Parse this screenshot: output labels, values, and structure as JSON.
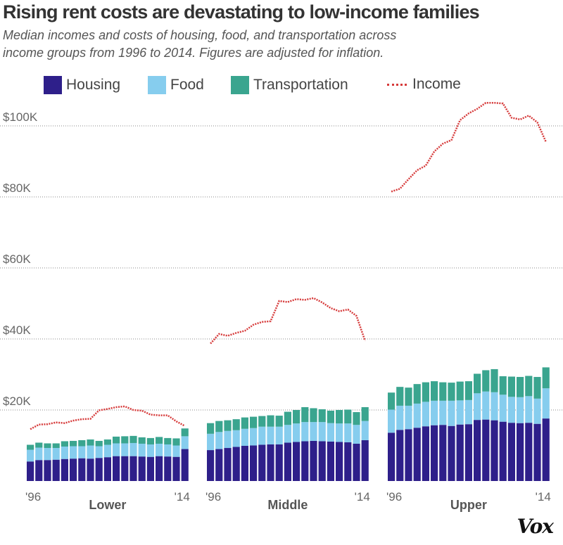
{
  "header": {
    "title": "Rising rent costs are devastating to low-income families",
    "subtitle": "Median incomes and costs of housing, food, and transportation across income groups from 1996 to 2014. Figures are adjusted for inflation."
  },
  "legend": {
    "housing": "Housing",
    "food": "Food",
    "transportation": "Transportation",
    "income": "Income"
  },
  "colors": {
    "housing": "#2e1f8a",
    "food": "#86cdee",
    "transportation": "#3aa58f",
    "income": "#d63a3a",
    "grid": "#888888"
  },
  "footer": {
    "logo": "Vox"
  },
  "chart_data": {
    "type": "bar",
    "stacked": true,
    "title": "Rising rent costs are devastating to low-income families",
    "years": [
      1996,
      1997,
      1998,
      1999,
      2000,
      2001,
      2002,
      2003,
      2004,
      2005,
      2006,
      2007,
      2008,
      2009,
      2010,
      2011,
      2012,
      2013,
      2014
    ],
    "x_tick_labels": [
      "'96",
      "'14"
    ],
    "y_ticks": [
      20000,
      40000,
      60000,
      80000,
      100000
    ],
    "y_tick_labels": [
      "$20K",
      "$40K",
      "$60K",
      "$80K",
      "$100K"
    ],
    "ylim": [
      0,
      112000
    ],
    "groups": [
      {
        "name": "Lower",
        "housing": [
          5500,
          5900,
          5900,
          6000,
          6200,
          6300,
          6400,
          6300,
          6500,
          6700,
          7000,
          7000,
          7000,
          6900,
          6800,
          7000,
          6900,
          6800,
          9000
        ],
        "food": [
          3300,
          3500,
          3400,
          3300,
          3500,
          3500,
          3400,
          3700,
          3300,
          3500,
          3600,
          3600,
          3700,
          3600,
          3500,
          3500,
          3400,
          3200,
          3600
        ],
        "transportation": [
          1400,
          1400,
          1300,
          1300,
          1500,
          1500,
          1700,
          1700,
          1500,
          1500,
          1900,
          2000,
          2000,
          1800,
          1800,
          1900,
          1800,
          2000,
          2200
        ],
        "income": [
          14600,
          15900,
          16000,
          16500,
          16300,
          17000,
          17400,
          17500,
          19900,
          20300,
          20800,
          21000,
          20000,
          19800,
          18700,
          18500,
          18500,
          16800,
          15500
        ]
      },
      {
        "name": "Middle",
        "housing": [
          8700,
          9000,
          9300,
          9600,
          9900,
          10000,
          10200,
          10300,
          10300,
          10800,
          11000,
          11200,
          11300,
          11200,
          11100,
          11000,
          10900,
          10500,
          11500
        ],
        "food": [
          4600,
          4800,
          4800,
          4700,
          4800,
          4900,
          5100,
          5000,
          5000,
          5000,
          5200,
          5400,
          5300,
          5400,
          5200,
          5200,
          5300,
          5300,
          5400
        ],
        "transportation": [
          3000,
          3100,
          3000,
          3100,
          3200,
          3200,
          3000,
          3200,
          3100,
          3700,
          3800,
          4200,
          3900,
          3600,
          3500,
          3800,
          3900,
          3600,
          3900
        ],
        "income": [
          38700,
          41400,
          40900,
          41700,
          42300,
          44000,
          44800,
          45000,
          50700,
          50400,
          51200,
          51000,
          51500,
          50300,
          48700,
          47800,
          48300,
          46500,
          39500
        ]
      },
      {
        "name": "Upper",
        "housing": [
          13600,
          14400,
          14600,
          15000,
          15400,
          15700,
          15800,
          15500,
          15900,
          16000,
          17200,
          17300,
          17100,
          16700,
          16400,
          16300,
          16400,
          16100,
          17600
        ],
        "food": [
          6500,
          6800,
          6600,
          6800,
          6900,
          6900,
          6800,
          7100,
          6800,
          6800,
          7500,
          7900,
          7900,
          7600,
          7300,
          7300,
          7500,
          7100,
          8500
        ],
        "transportation": [
          4800,
          5300,
          5100,
          5500,
          5500,
          5500,
          5200,
          5100,
          5300,
          5300,
          5500,
          6000,
          6500,
          5200,
          5700,
          5700,
          5700,
          6100,
          5900
        ],
        "income": [
          81500,
          82300,
          85000,
          87500,
          88800,
          92800,
          95000,
          96000,
          101600,
          103500,
          104800,
          106500,
          106500,
          106300,
          102300,
          101800,
          102900,
          101000,
          95500
        ]
      }
    ]
  }
}
